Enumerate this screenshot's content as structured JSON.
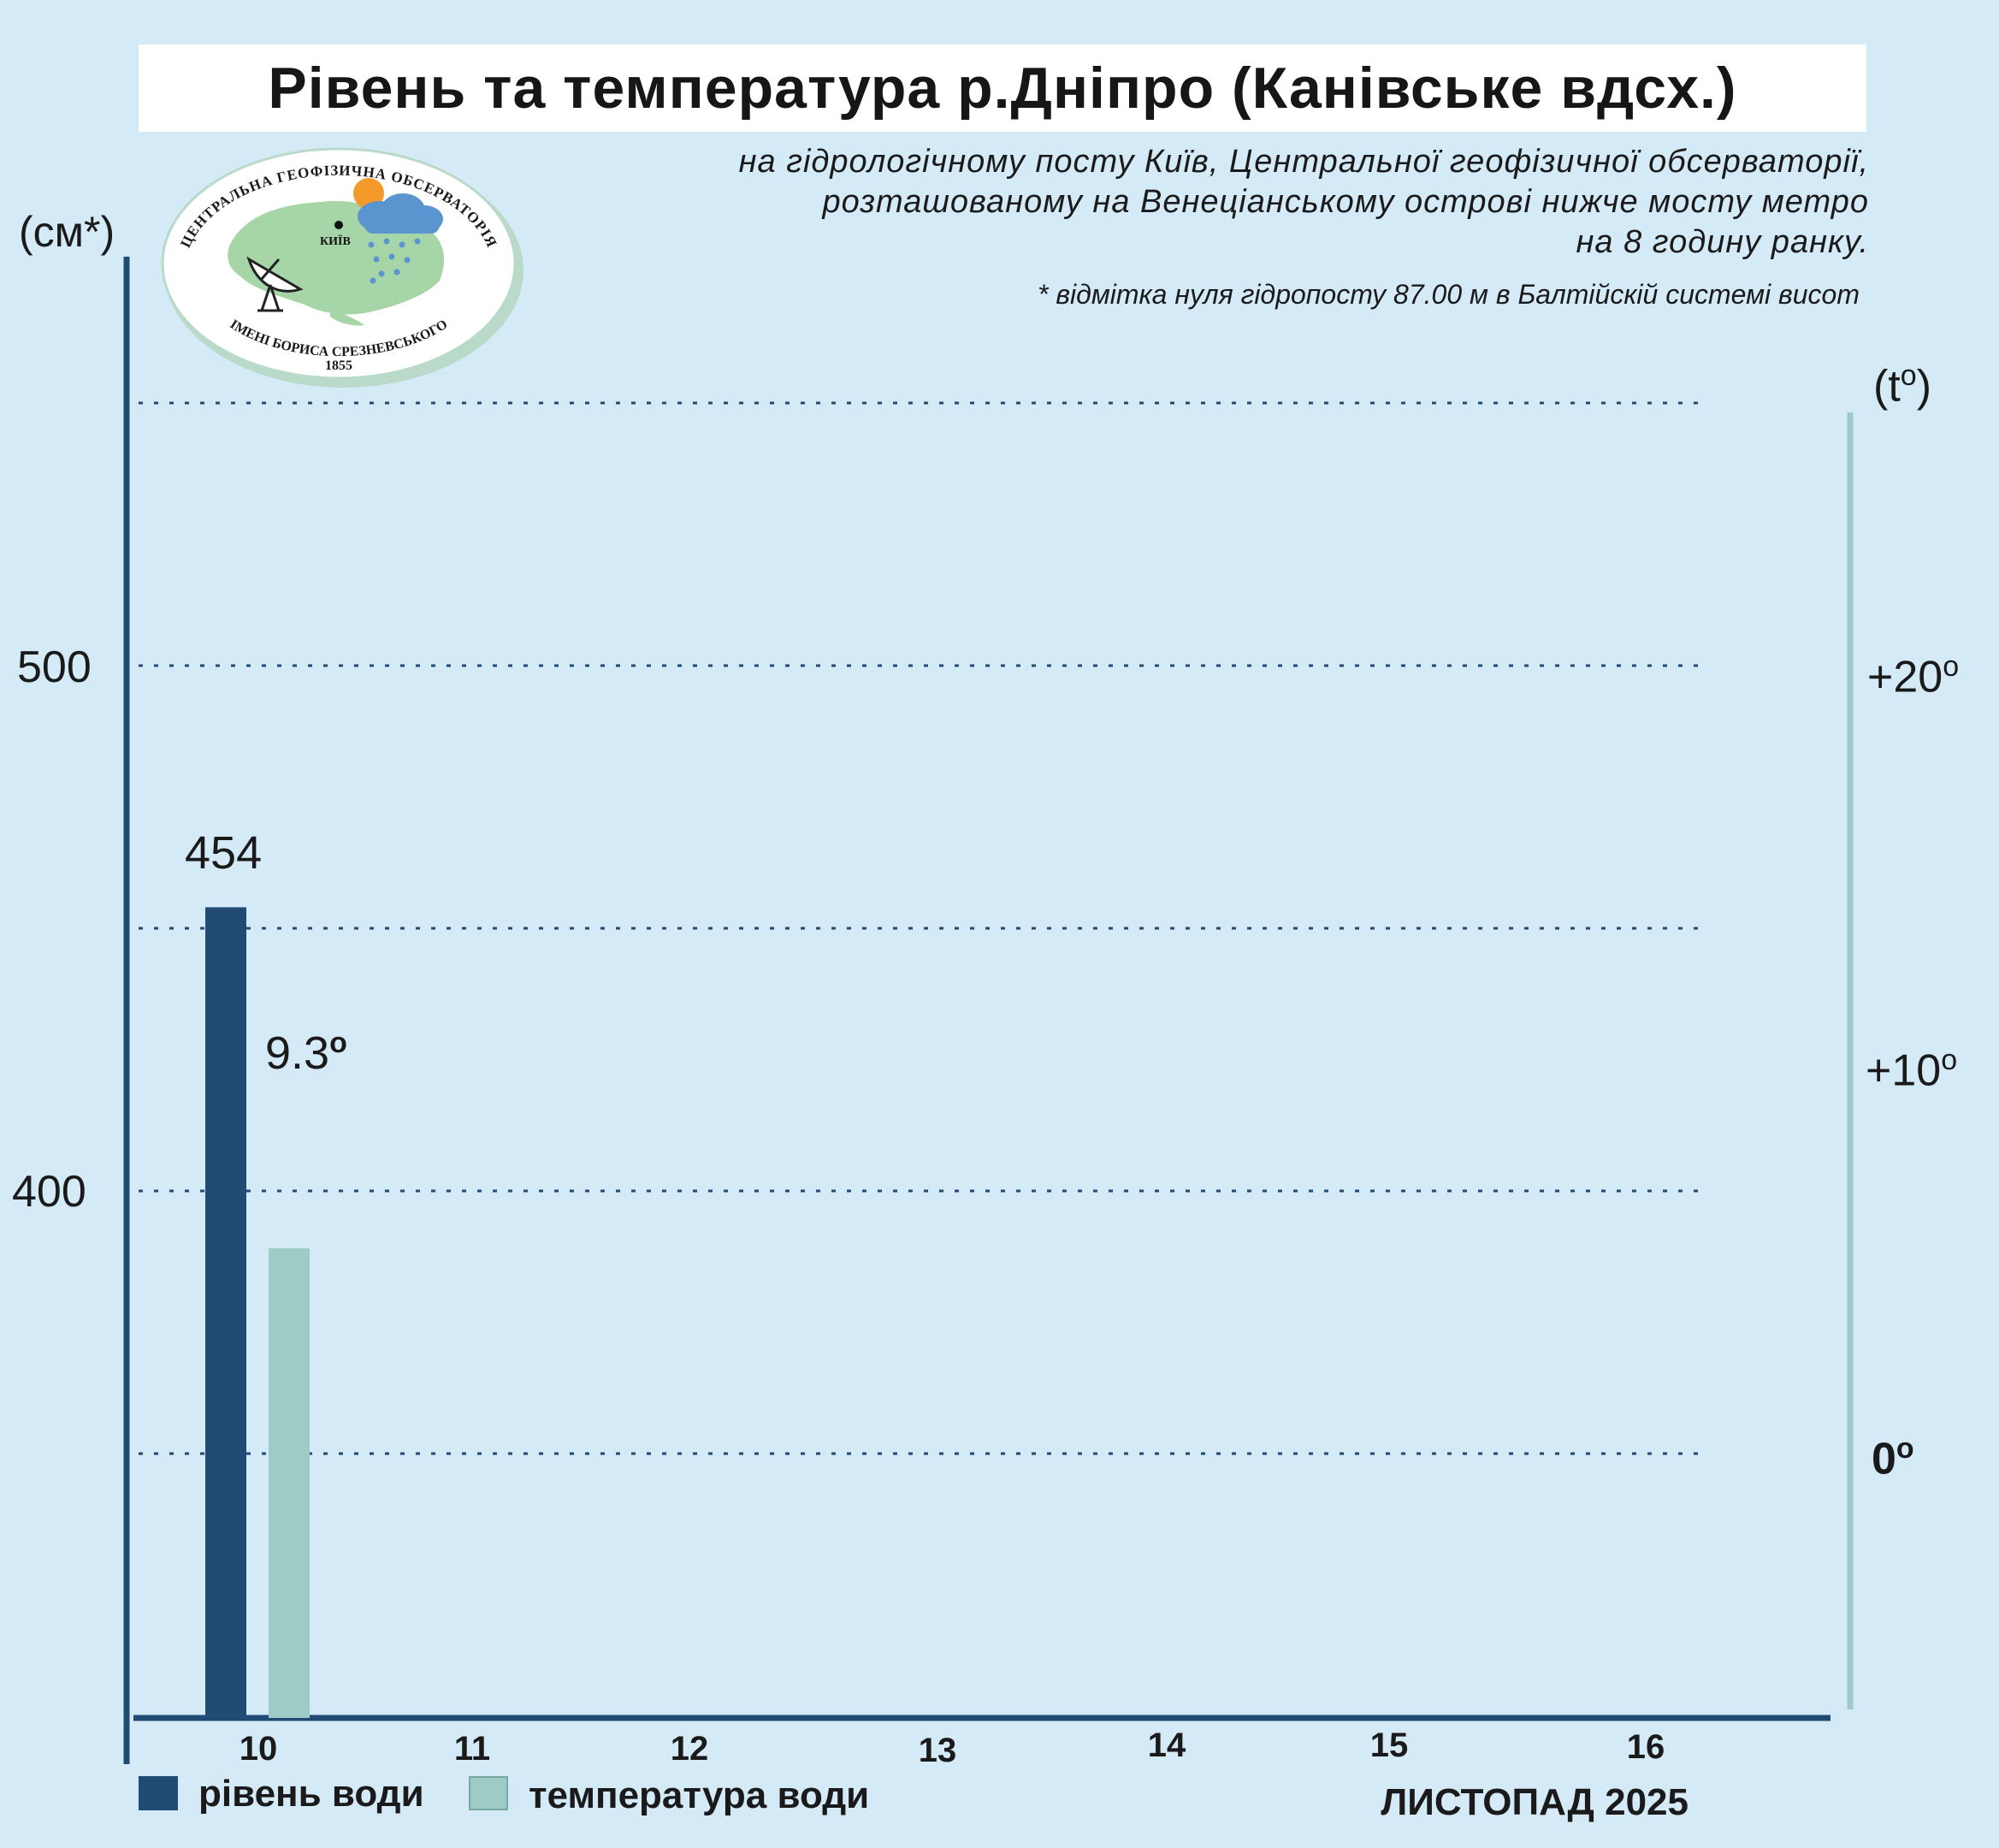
{
  "header": {
    "title": "Рівень та температура р.Дніпро (Канівське вдсх.)",
    "subtitle_lines": [
      "на гідрологічному посту Київ, Центральної геофізичної обсерваторії,",
      "розташованому на Венеціанському острові нижче мосту метро",
      "на 8 годину ранку."
    ],
    "note": "* відмітка нуля гідропосту 87.00 м в Балтійскій системі висот"
  },
  "logo": {
    "top_text": "ЦЕНТРАЛЬНА ГЕОФІЗИЧНА ОБСЕРВАТОРІЯ",
    "bottom_text": "ІМЕНІ БОРИСА СРЕЗНЕВСЬКОГО",
    "year": "1855",
    "city": "КИЇВ"
  },
  "axes": {
    "left_unit": "(см*)",
    "right_unit_base": "(t",
    "right_unit_sup": "o",
    "right_unit_close": ")",
    "left_ticks": [
      "500",
      "400"
    ],
    "right_ticks": [
      {
        "base": "+20",
        "sup": "o"
      },
      {
        "base": "+10",
        "sup": "o"
      },
      {
        "base": "0",
        "sup": "o"
      }
    ]
  },
  "legend": {
    "level_label": "рівень води",
    "temp_label": "температура води"
  },
  "month_label": "ЛИСТОПАД 2025",
  "colors": {
    "background": "#d5eaf7",
    "level_bar": "#214b74",
    "temp_bar": "#9fcbc6",
    "axis": "#214b74",
    "right_axis": "#9fcbc6",
    "grid": "#214b74"
  },
  "chart_data": {
    "type": "bar",
    "categories": [
      "10",
      "11",
      "12",
      "13",
      "14",
      "15",
      "16"
    ],
    "series": [
      {
        "name": "рівень води",
        "axis": "left",
        "unit": "см",
        "values": [
          454,
          null,
          null,
          null,
          null,
          null,
          null
        ]
      },
      {
        "name": "температура води",
        "axis": "right",
        "unit": "°C",
        "values": [
          9.3,
          null,
          null,
          null,
          null,
          null,
          null
        ]
      }
    ],
    "data_labels": {
      "level": "454",
      "temp": "9.3",
      "temp_sup": "o"
    },
    "left_axis": {
      "ylim": [
        300,
        550
      ],
      "ticks": [
        500,
        400
      ]
    },
    "right_axis": {
      "ylim": [
        -10,
        30
      ],
      "ticks": [
        20,
        10,
        0
      ]
    },
    "grid": true,
    "legend_position": "bottom-left"
  }
}
